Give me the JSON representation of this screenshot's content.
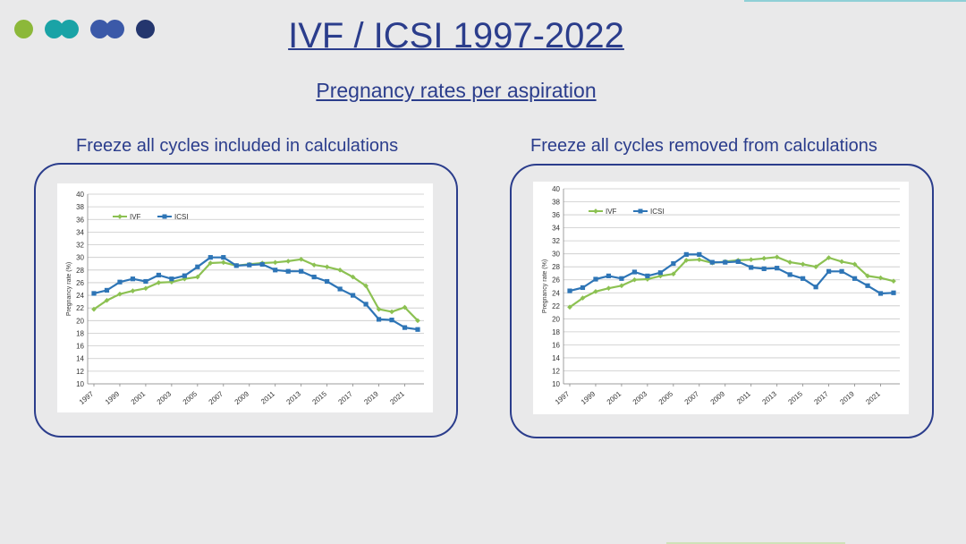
{
  "slide": {
    "title": "IVF / ICSI  1997-2022",
    "subtitle": "Pregnancy rates per aspiration",
    "colors": {
      "accent": "#2b3d8c",
      "ivf": "#8cc152",
      "icsi": "#2e75b6"
    }
  },
  "chart_data": [
    {
      "type": "line",
      "title": "Freeze all cycles included in calculations",
      "xlabel": "",
      "ylabel": "Pregnancy rate (%)",
      "ylim": [
        10,
        40
      ],
      "yticks": [
        10,
        12,
        14,
        16,
        18,
        20,
        22,
        24,
        26,
        28,
        30,
        32,
        34,
        36,
        38,
        40
      ],
      "x": [
        1997,
        1998,
        1999,
        2000,
        2001,
        2002,
        2003,
        2004,
        2005,
        2006,
        2007,
        2008,
        2009,
        2010,
        2011,
        2012,
        2013,
        2014,
        2015,
        2016,
        2017,
        2018,
        2019,
        2020,
        2021,
        2022
      ],
      "xticks": [
        "1997",
        "1999",
        "2001",
        "2003",
        "2005",
        "2007",
        "2009",
        "2011",
        "2013",
        "2015",
        "2017",
        "2019",
        "2021"
      ],
      "grid": true,
      "legend": "top-left",
      "series": [
        {
          "name": "IVF",
          "values": [
            21.8,
            23.2,
            24.2,
            24.7,
            25.1,
            26.0,
            26.1,
            26.6,
            26.9,
            29.1,
            29.2,
            28.7,
            28.9,
            29.1,
            29.2,
            29.4,
            29.7,
            28.8,
            28.5,
            28.0,
            26.9,
            25.5,
            21.8,
            21.4,
            22.1,
            20.0
          ]
        },
        {
          "name": "ICSI",
          "values": [
            24.3,
            24.8,
            26.1,
            26.6,
            26.2,
            27.2,
            26.6,
            27.1,
            28.5,
            30.0,
            30.0,
            28.7,
            28.8,
            28.9,
            28.0,
            27.8,
            27.8,
            26.9,
            26.2,
            25.0,
            24.0,
            22.6,
            20.2,
            20.1,
            18.9,
            18.6
          ]
        }
      ]
    },
    {
      "type": "line",
      "title": "Freeze all cycles removed from calculations",
      "xlabel": "",
      "ylabel": "Pregnancy rate (%)",
      "ylim": [
        10,
        40
      ],
      "yticks": [
        10,
        12,
        14,
        16,
        18,
        20,
        22,
        24,
        26,
        28,
        30,
        32,
        34,
        36,
        38,
        40
      ],
      "x": [
        1997,
        1998,
        1999,
        2000,
        2001,
        2002,
        2003,
        2004,
        2005,
        2006,
        2007,
        2008,
        2009,
        2010,
        2011,
        2012,
        2013,
        2014,
        2015,
        2016,
        2017,
        2018,
        2019,
        2020,
        2021,
        2022
      ],
      "xticks": [
        "1997",
        "1999",
        "2001",
        "2003",
        "2005",
        "2007",
        "2009",
        "2011",
        "2013",
        "2015",
        "2017",
        "2019",
        "2021"
      ],
      "grid": true,
      "legend": "top-left",
      "series": [
        {
          "name": "IVF",
          "values": [
            21.8,
            23.2,
            24.2,
            24.7,
            25.1,
            26.0,
            26.1,
            26.6,
            26.9,
            29.0,
            29.1,
            28.6,
            28.8,
            29.0,
            29.1,
            29.3,
            29.5,
            28.7,
            28.4,
            28.0,
            29.4,
            28.8,
            28.4,
            26.6,
            26.3,
            25.8
          ]
        },
        {
          "name": "ICSI",
          "values": [
            24.3,
            24.8,
            26.1,
            26.6,
            26.2,
            27.2,
            26.6,
            27.1,
            28.5,
            29.9,
            29.9,
            28.7,
            28.7,
            28.8,
            27.9,
            27.7,
            27.8,
            26.8,
            26.2,
            24.9,
            27.3,
            27.3,
            26.2,
            25.1,
            23.9,
            24.0
          ]
        }
      ]
    }
  ]
}
